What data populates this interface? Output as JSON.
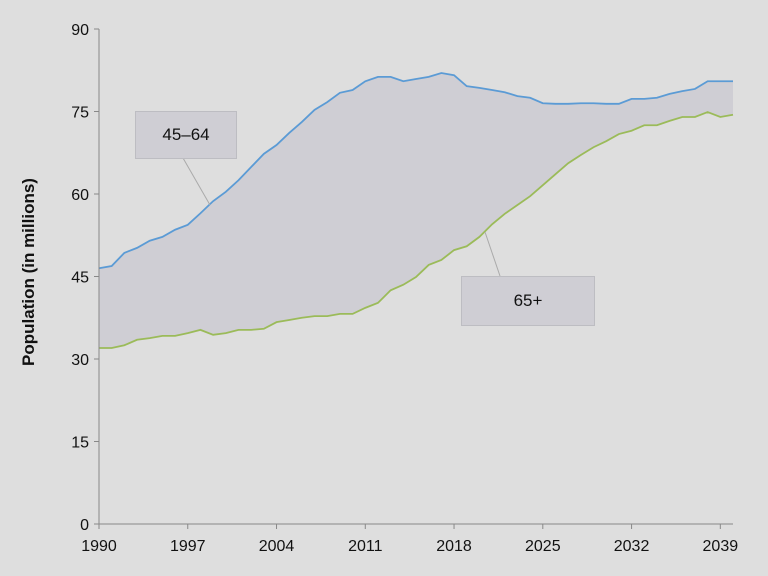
{
  "chart_data": {
    "type": "area",
    "title": "",
    "xlabel": "",
    "ylabel": "Population (in millions)",
    "xlim": [
      1990,
      2040
    ],
    "ylim": [
      0,
      90
    ],
    "yticks": [
      0,
      15,
      30,
      45,
      60,
      75,
      90
    ],
    "xticks": [
      1990,
      1997,
      2004,
      2011,
      2018,
      2025,
      2032,
      2039
    ],
    "grid": false,
    "colors": {
      "background": "#dedede",
      "fill": "#cfced4",
      "upper": "#5b9bd5",
      "lower": "#9bbb59",
      "axis": "#888888"
    },
    "x": [
      1990,
      1991,
      1992,
      1993,
      1994,
      1995,
      1996,
      1997,
      1998,
      1999,
      2000,
      2001,
      2002,
      2003,
      2004,
      2005,
      2006,
      2007,
      2008,
      2009,
      2010,
      2011,
      2012,
      2013,
      2014,
      2015,
      2016,
      2017,
      2018,
      2019,
      2020,
      2021,
      2022,
      2023,
      2024,
      2025,
      2026,
      2027,
      2028,
      2029,
      2030,
      2031,
      2032,
      2033,
      2034,
      2035,
      2036,
      2037,
      2038,
      2039,
      2040
    ],
    "series": [
      {
        "name": "45–64",
        "values": [
          46.5,
          46.9,
          49.3,
          50.2,
          51.5,
          52.2,
          53.5,
          54.4,
          56.5,
          58.7,
          60.4,
          62.5,
          64.9,
          67.3,
          68.9,
          71.1,
          73.1,
          75.3,
          76.7,
          78.4,
          78.9,
          80.5,
          81.3,
          81.3,
          80.5,
          80.9,
          81.3,
          82.0,
          81.6,
          79.6,
          79.3,
          78.9,
          78.5,
          77.8,
          77.5,
          76.5,
          76.4,
          76.4,
          76.5,
          76.5,
          76.4,
          76.4,
          77.3,
          77.3,
          77.5,
          78.2,
          78.7,
          79.1,
          80.5,
          80.5,
          80.5
        ]
      },
      {
        "name": "65+",
        "values": [
          32.0,
          32.0,
          32.5,
          33.5,
          33.8,
          34.2,
          34.2,
          34.7,
          35.3,
          34.4,
          34.7,
          35.3,
          35.3,
          35.5,
          36.7,
          37.1,
          37.5,
          37.8,
          37.8,
          38.2,
          38.2,
          39.3,
          40.2,
          42.5,
          43.5,
          44.9,
          47.1,
          48.0,
          49.8,
          50.5,
          52.2,
          54.5,
          56.4,
          58.0,
          59.6,
          61.6,
          63.6,
          65.6,
          67.1,
          68.5,
          69.6,
          70.9,
          71.5,
          72.5,
          72.5,
          73.3,
          74.0,
          74.0,
          74.9,
          74.0,
          74.4
        ]
      }
    ],
    "annotations": [
      "45–64",
      "65+"
    ]
  }
}
